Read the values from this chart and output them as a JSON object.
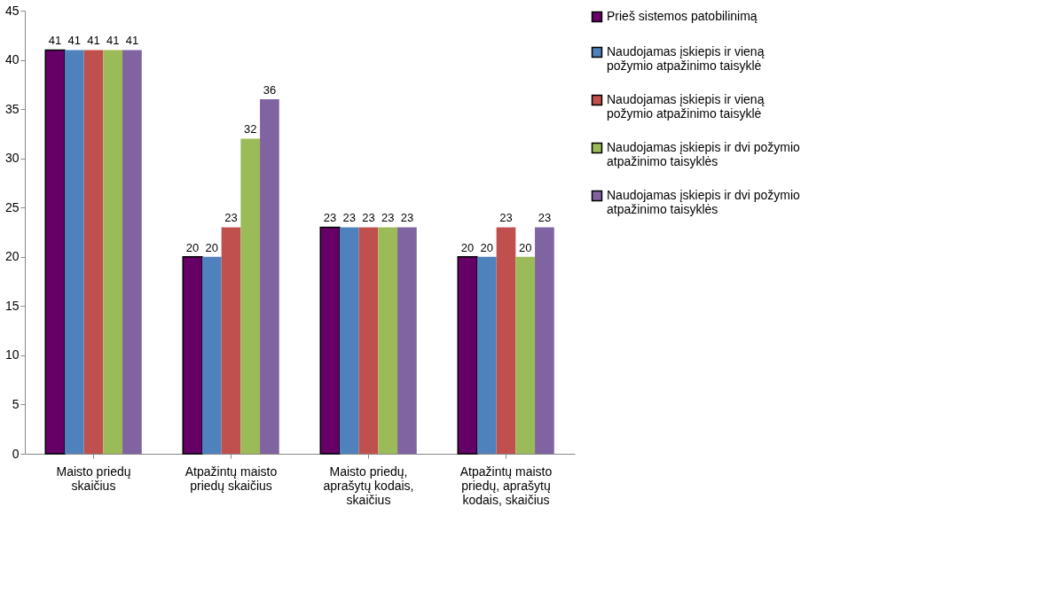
{
  "chart_data": {
    "type": "bar",
    "categories": [
      "Maisto priedų skaičius",
      "Atpažintų maisto priedų skaičius",
      "Maisto priedų, aprašytų kodais, skaičius",
      "Atpažintų maisto priedų, aprašytų kodais, skaičius"
    ],
    "series": [
      {
        "name": "Prieš sistemos patobilinimą",
        "color": "#660066",
        "values": [
          41,
          20,
          23,
          20
        ]
      },
      {
        "name": "Naudojamas įskiepis ir vieną požymio atpažinimo taisyklė",
        "color": "#4f81bd",
        "values": [
          41,
          20,
          23,
          20
        ]
      },
      {
        "name": "Naudojamas įskiepis ir vieną požymio atpažinimo taisyklė ",
        "color": "#c0504d",
        "values": [
          41,
          23,
          23,
          23
        ]
      },
      {
        "name": "Naudojamas įskiepis ir dvi požymio atpažinimo taisyklės",
        "color": "#9bbb59",
        "values": [
          41,
          32,
          23,
          20
        ]
      },
      {
        "name": "Naudojamas įskiepis ir dvi požymio atpažinimo taisyklės ",
        "color": "#8064a2",
        "values": [
          41,
          36,
          23,
          23
        ]
      }
    ],
    "ylim": [
      0,
      45
    ],
    "yticks": [
      0,
      5,
      10,
      15,
      20,
      25,
      30,
      35,
      40,
      45
    ],
    "grid": false,
    "legend": "right",
    "data_labels": true
  }
}
